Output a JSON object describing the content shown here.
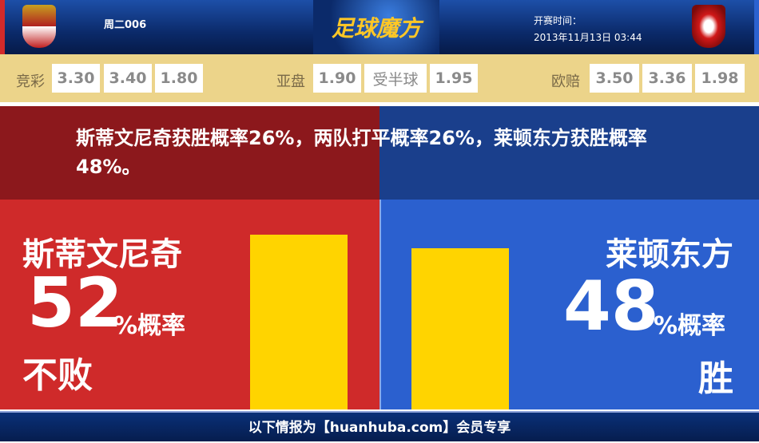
{
  "header": {
    "match_code": "周二006",
    "logo_text": "足球魔方",
    "kickoff_label": "开赛时间：",
    "kickoff_time": "2013年11月13日 03:44"
  },
  "odds": {
    "jingcai": {
      "label": "竞彩",
      "values": [
        "3.30",
        "3.40",
        "1.80"
      ]
    },
    "asian": {
      "label": "亚盘",
      "values": [
        "1.90",
        "受半球",
        "1.95"
      ]
    },
    "euro": {
      "label": "欧赔",
      "values": [
        "3.50",
        "3.36",
        "1.98"
      ]
    }
  },
  "summary": "斯蒂文尼奇获胜概率26%，两队打平概率26%，莱顿东方获胜概率48%。",
  "home": {
    "name": "斯蒂文尼奇",
    "percent": "52",
    "unit": "%概率",
    "outcome": "不败",
    "color": "#cf2a2a"
  },
  "away": {
    "name": "莱顿东方",
    "percent": "48",
    "unit": "%概率",
    "outcome": "胜",
    "color": "#2b60cf"
  },
  "bar_color": "#ffd400",
  "footer": "以下情报为【huanhuba.com】会员专享"
}
